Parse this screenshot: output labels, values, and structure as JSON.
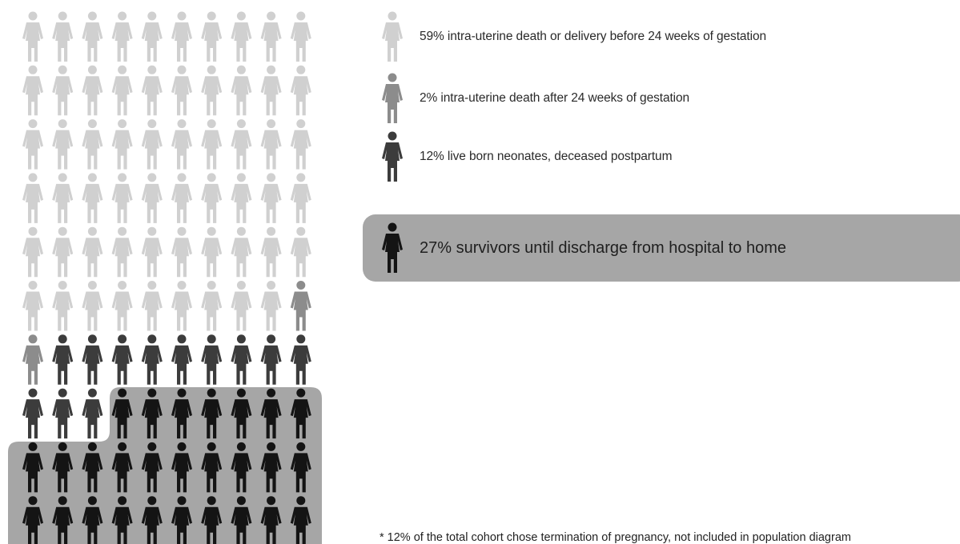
{
  "legend": [
    {
      "label": "59% intra-uterine death or delivery before 24 weeks of gestation",
      "color": "#d0d0d0",
      "count": 59
    },
    {
      "label": "2% intra-uterine death after 24 weeks of gestation",
      "color": "#8c8c8c",
      "count": 2
    },
    {
      "label": "12% live born neonates, deceased postpartum",
      "color": "#3c3c3c",
      "count": 12
    },
    {
      "label": "27% survivors until discharge from hospital to home",
      "color": "#141414",
      "count": 27
    }
  ],
  "highlight_color": "#a6a6a6",
  "footnote": "* 12% of the total cohort chose termination of pregnancy, not included in population diagram"
}
